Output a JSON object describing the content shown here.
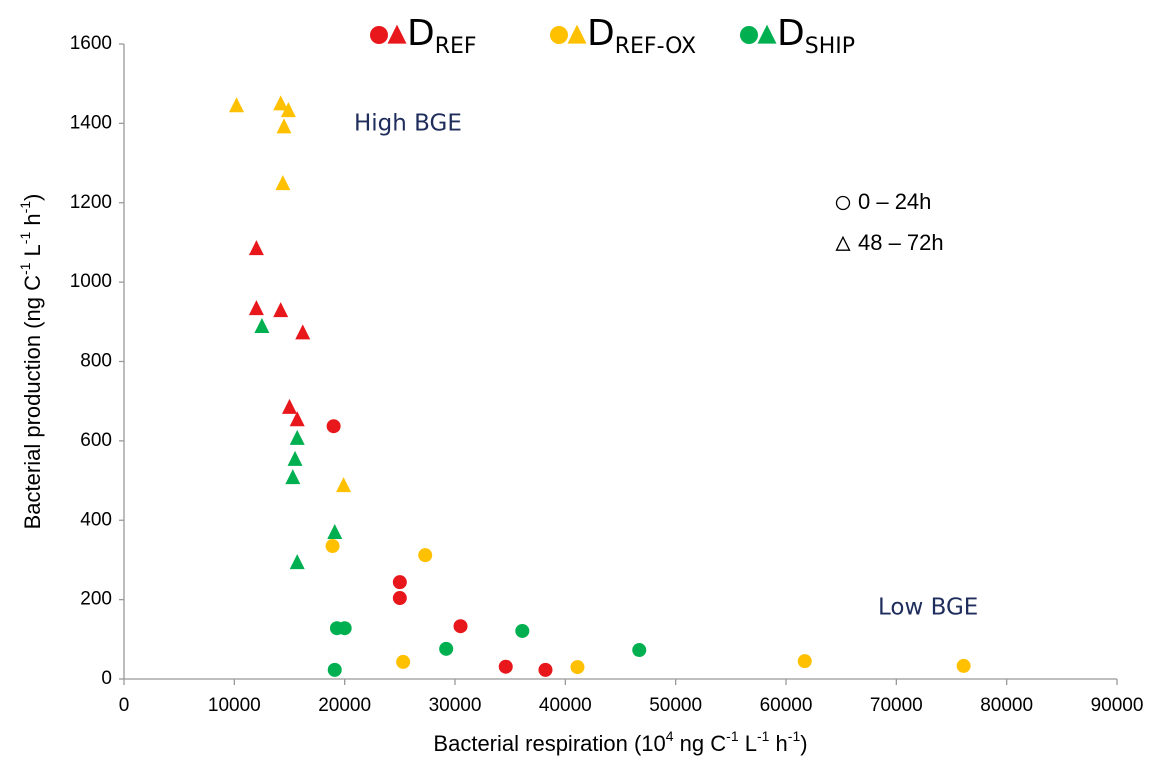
{
  "chart_data": {
    "type": "scatter",
    "xlabel": [
      {
        "text": "Bacterial respiration (10"
      },
      {
        "text": "4",
        "sup": true
      },
      {
        "text": " ng C"
      },
      {
        "text": "-1",
        "sup": true
      },
      {
        "text": " L"
      },
      {
        "text": "-1",
        "sup": true
      },
      {
        "text": " h"
      },
      {
        "text": "-1",
        "sup": true
      },
      {
        "text": ")"
      }
    ],
    "ylabel": [
      {
        "text": "Bacterial production (ng C"
      },
      {
        "text": "-1",
        "sup": true
      },
      {
        "text": " L"
      },
      {
        "text": "-1",
        "sup": true
      },
      {
        "text": " h"
      },
      {
        "text": "-1",
        "sup": true
      },
      {
        "text": ")"
      }
    ],
    "xlim": [
      0,
      90000
    ],
    "xticks": [
      0,
      10000,
      20000,
      30000,
      40000,
      50000,
      60000,
      70000,
      80000,
      90000
    ],
    "ylim": [
      0,
      1600
    ],
    "yticks": [
      0,
      200,
      400,
      600,
      800,
      1000,
      1200,
      1400,
      1600
    ],
    "grid": false,
    "annotations": [
      "High BGE",
      "Low BGE"
    ],
    "markers": [
      {
        "symbol": "circle",
        "label": "0 – 24h"
      },
      {
        "symbol": "triangle",
        "label": "48 – 72h"
      }
    ],
    "groups": [
      {
        "label": "D",
        "label_sub": "REF",
        "color": "#e8171b",
        "series": [
          {
            "marker": "circle",
            "x": [
              19000,
              25000,
              25000,
              30500,
              34600,
              38200
            ],
            "values": [
              637,
              244,
              204,
              133,
              31,
              23
            ]
          },
          {
            "marker": "triangle",
            "x": [
              12000,
              12000,
              14200,
              16200,
              15000,
              15700
            ],
            "values": [
              1083,
              932,
              927,
              871,
              683,
              652
            ]
          }
        ]
      },
      {
        "label": "D",
        "label_sub": "REF-OX",
        "color": "#ffc000",
        "series": [
          {
            "marker": "circle",
            "x": [
              18900,
              27300,
              25300,
              41100,
              61700,
              76100
            ],
            "values": [
              335,
              312,
              43,
              30,
              45,
              33
            ]
          },
          {
            "marker": "triangle",
            "x": [
              10200,
              14200,
              14900,
              14500,
              14400,
              19900
            ],
            "values": [
              1443,
              1448,
              1431,
              1390,
              1247,
              486
            ]
          }
        ]
      },
      {
        "label": "D",
        "label_sub": "SHIP",
        "color": "#00b050",
        "series": [
          {
            "marker": "circle",
            "x": [
              19300,
              20000,
              36100,
              29200,
              46700,
              19100
            ],
            "values": [
              128,
              128,
              121,
              76,
              73,
              23
            ]
          },
          {
            "marker": "triangle",
            "x": [
              12500,
              15700,
              15500,
              15300,
              19100,
              15700
            ],
            "values": [
              887,
              605,
              552,
              506,
              368,
              292
            ]
          }
        ]
      }
    ]
  }
}
